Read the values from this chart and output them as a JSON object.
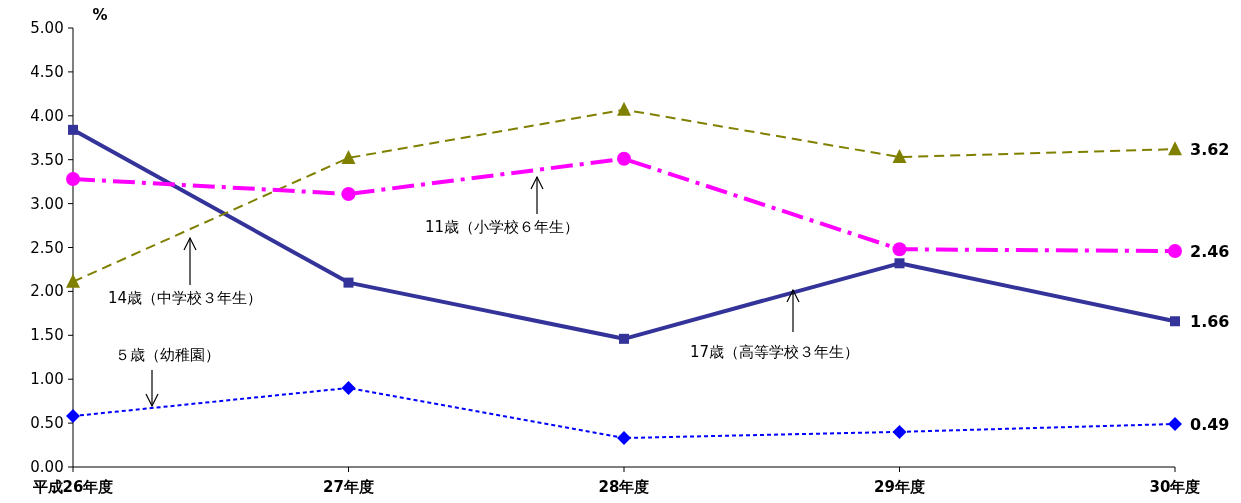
{
  "chart_data": {
    "type": "line",
    "ylabel": "%",
    "categories": [
      "平成26年度",
      "27年度",
      "28年度",
      "29年度",
      "30年度"
    ],
    "series": [
      {
        "name": "17歳（高等学校３年生）",
        "color": "#333399",
        "values": [
          3.84,
          2.1,
          1.46,
          2.32,
          1.66
        ],
        "marker": "square",
        "line_style": "solid",
        "value_labels": [
          null,
          null,
          null,
          null,
          "1.66"
        ]
      },
      {
        "name": "14歳（中学校３年生）",
        "color": "#808000",
        "values": [
          2.11,
          3.52,
          4.07,
          3.53,
          3.62
        ],
        "marker": "triangle",
        "line_style": "dashed",
        "value_labels": [
          null,
          null,
          null,
          null,
          "3.62"
        ]
      },
      {
        "name": "11歳（小学校６年生）",
        "color": "#ff00ff",
        "values": [
          3.28,
          3.11,
          3.51,
          2.48,
          2.46
        ],
        "marker": "circle",
        "line_style": "dashdot",
        "value_labels": [
          null,
          null,
          null,
          null,
          "2.46"
        ]
      },
      {
        "name": "５歳（幼稚園）",
        "color": "#0000ff",
        "values": [
          0.58,
          0.9,
          0.33,
          0.4,
          0.49
        ],
        "marker": "diamond",
        "line_style": "dotted",
        "value_labels": [
          null,
          null,
          null,
          null,
          "0.49"
        ]
      }
    ],
    "ylim": [
      0,
      5
    ],
    "yticks": [
      {
        "value": 0,
        "label": "0.00"
      },
      {
        "value": 0.5,
        "label": "0.50"
      },
      {
        "value": 1,
        "label": "1.00"
      },
      {
        "value": 1.5,
        "label": "1.50"
      },
      {
        "value": 2,
        "label": "2.00"
      },
      {
        "value": 2.5,
        "label": "2.50"
      },
      {
        "value": 3,
        "label": "3.00"
      },
      {
        "value": 3.5,
        "label": "3.50"
      },
      {
        "value": 4,
        "label": "4.00"
      },
      {
        "value": 4.5,
        "label": "4.50"
      },
      {
        "value": 5,
        "label": "5.00"
      }
    ],
    "grid": false
  }
}
